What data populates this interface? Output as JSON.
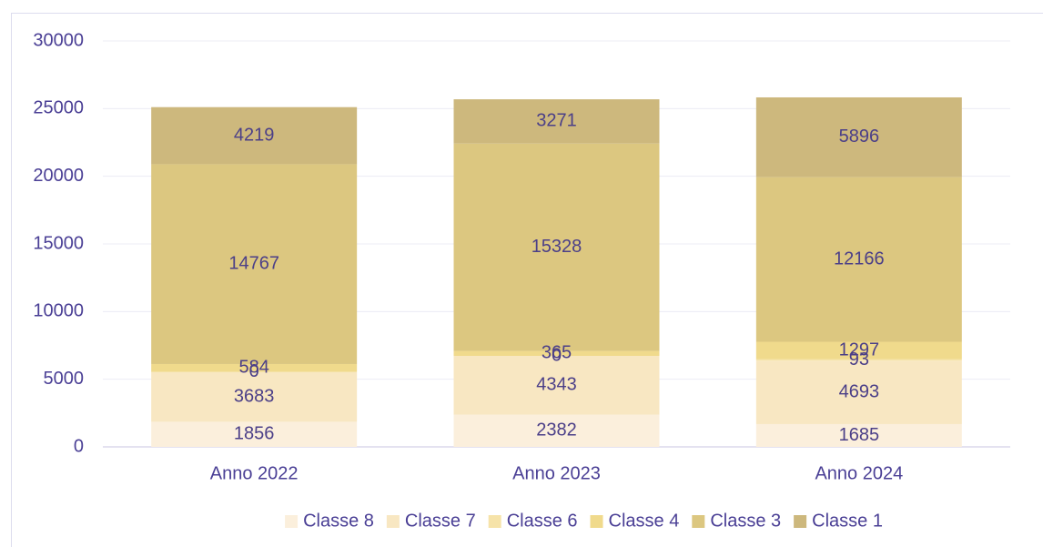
{
  "chart_data": {
    "type": "stacked_bar",
    "categories": [
      "Anno 2022",
      "Anno 2023",
      "Anno 2024"
    ],
    "series": [
      {
        "name": "Classe 8",
        "color": "#fbefdc",
        "values": [
          1856,
          2382,
          1685
        ]
      },
      {
        "name": "Classe 7",
        "color": "#f8e7c2",
        "values": [
          3683,
          4343,
          4693
        ]
      },
      {
        "name": "Classe 6",
        "color": "#f6e3a9",
        "values": [
          0,
          0,
          93
        ]
      },
      {
        "name": "Classe 4",
        "color": "#f0da8c",
        "values": [
          584,
          365,
          1297
        ]
      },
      {
        "name": "Classe 3",
        "color": "#dcc780",
        "values": [
          14767,
          15328,
          12166
        ]
      },
      {
        "name": "Classe 1",
        "color": "#cdb87d",
        "values": [
          4219,
          3271,
          5896
        ]
      }
    ],
    "ylim": [
      0,
      30000
    ],
    "yticks": [
      0,
      5000,
      10000,
      15000,
      20000,
      25000,
      30000
    ],
    "grid": true,
    "legend": "bottom"
  }
}
